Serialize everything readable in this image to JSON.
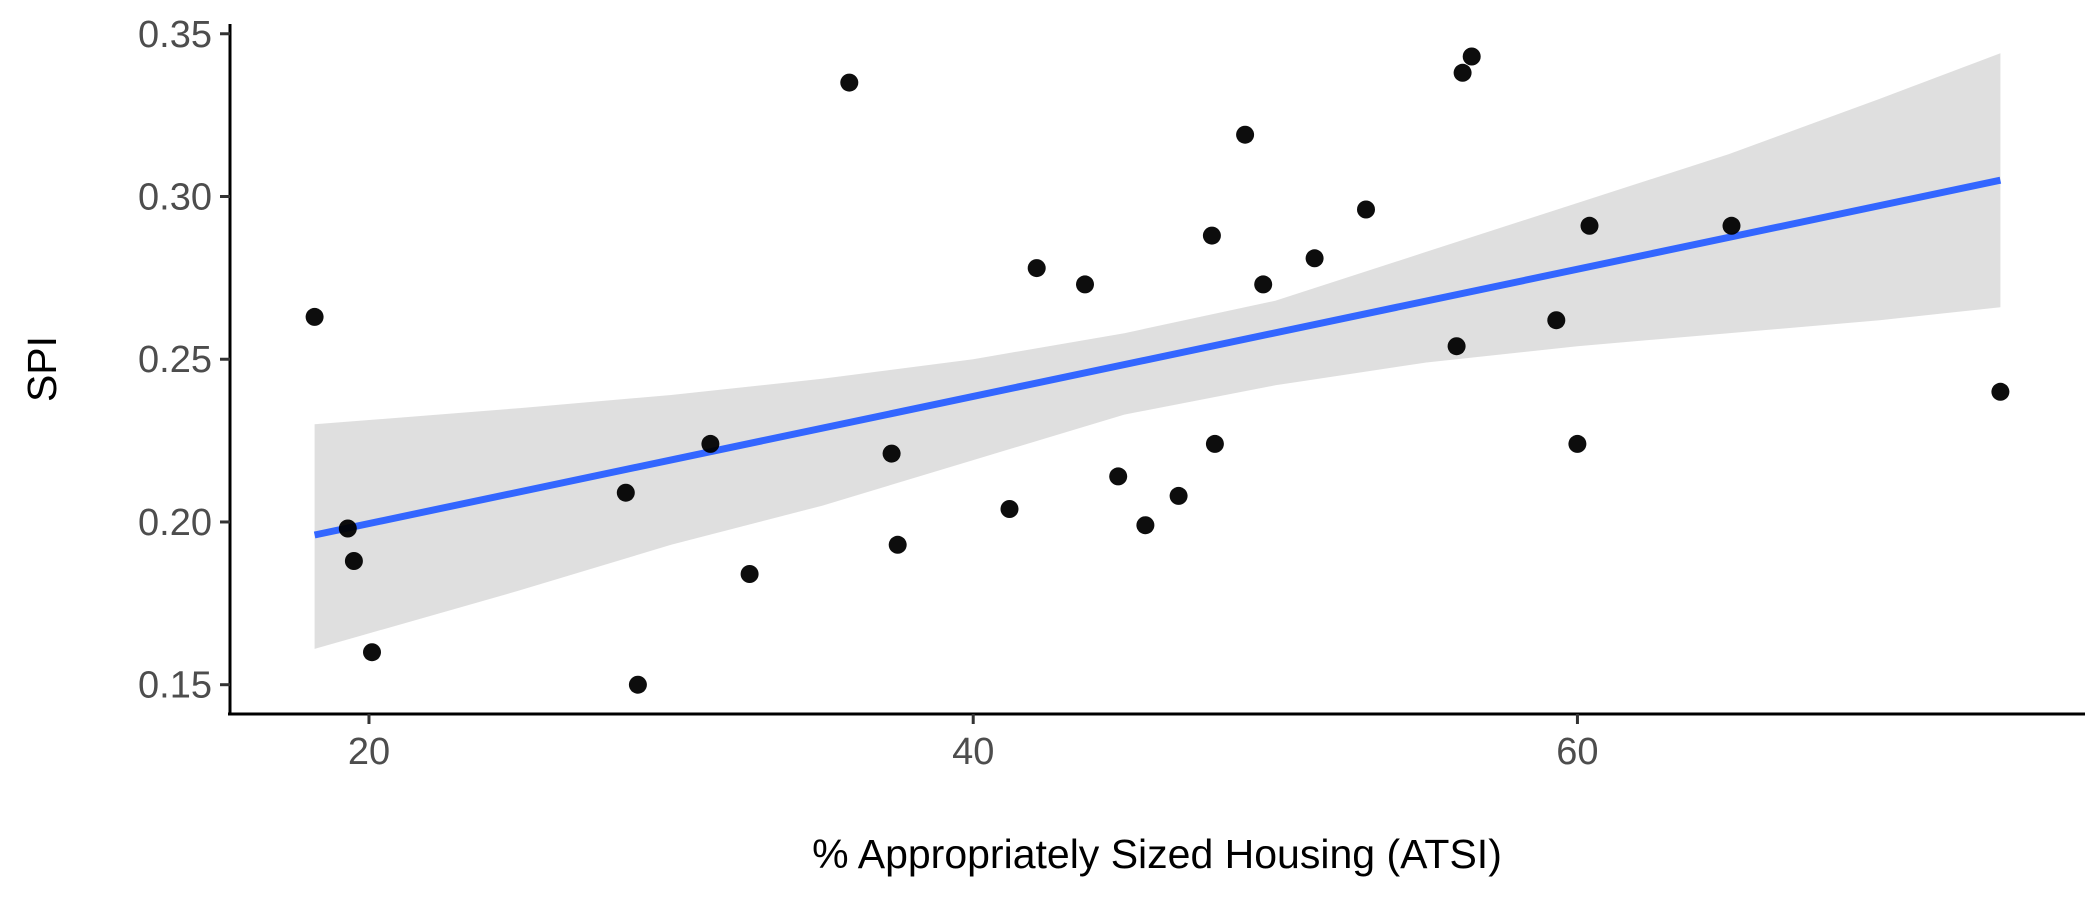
{
  "chart_data": {
    "type": "scatter",
    "title": "",
    "xlabel": "% Appropriately Sized Housing (ATSI)",
    "ylabel": "SPI",
    "xlim": [
      15.4,
      76.8
    ],
    "ylim": [
      0.141,
      0.353
    ],
    "xticks": [
      20,
      40,
      60
    ],
    "xtick_labels": [
      "20",
      "40",
      "60"
    ],
    "yticks": [
      0.15,
      0.2,
      0.25,
      0.3,
      0.35
    ],
    "ytick_labels": [
      "0.15",
      "0.20",
      "0.25",
      "0.30",
      "0.35"
    ],
    "grid": false,
    "legend": "none",
    "points": [
      {
        "x": 18.2,
        "y": 0.263
      },
      {
        "x": 19.3,
        "y": 0.198
      },
      {
        "x": 19.5,
        "y": 0.188
      },
      {
        "x": 20.1,
        "y": 0.16
      },
      {
        "x": 28.5,
        "y": 0.209
      },
      {
        "x": 28.9,
        "y": 0.15
      },
      {
        "x": 31.3,
        "y": 0.224
      },
      {
        "x": 32.6,
        "y": 0.184
      },
      {
        "x": 35.9,
        "y": 0.335
      },
      {
        "x": 37.3,
        "y": 0.221
      },
      {
        "x": 37.5,
        "y": 0.193
      },
      {
        "x": 41.2,
        "y": 0.204
      },
      {
        "x": 42.1,
        "y": 0.278
      },
      {
        "x": 43.7,
        "y": 0.273
      },
      {
        "x": 44.8,
        "y": 0.214
      },
      {
        "x": 45.7,
        "y": 0.199
      },
      {
        "x": 46.8,
        "y": 0.208
      },
      {
        "x": 47.9,
        "y": 0.288
      },
      {
        "x": 48.0,
        "y": 0.224
      },
      {
        "x": 49.0,
        "y": 0.319
      },
      {
        "x": 49.6,
        "y": 0.273
      },
      {
        "x": 51.3,
        "y": 0.281
      },
      {
        "x": 53.0,
        "y": 0.296
      },
      {
        "x": 56.0,
        "y": 0.254
      },
      {
        "x": 56.2,
        "y": 0.338
      },
      {
        "x": 56.5,
        "y": 0.343
      },
      {
        "x": 59.3,
        "y": 0.262
      },
      {
        "x": 60.0,
        "y": 0.224
      },
      {
        "x": 60.4,
        "y": 0.291
      },
      {
        "x": 65.1,
        "y": 0.291
      },
      {
        "x": 74.0,
        "y": 0.24
      }
    ],
    "trend_line": {
      "color": "#3366FF",
      "x": [
        18.2,
        74.0
      ],
      "y": [
        0.196,
        0.305
      ]
    },
    "confidence_band": {
      "color": "#d9d9d9",
      "x": [
        18.2,
        25,
        30,
        35,
        40,
        45,
        50,
        55,
        60,
        65,
        70,
        74.0
      ],
      "upper": [
        0.23,
        0.235,
        0.239,
        0.244,
        0.25,
        0.258,
        0.268,
        0.283,
        0.298,
        0.313,
        0.33,
        0.344
      ],
      "lower": [
        0.161,
        0.179,
        0.193,
        0.205,
        0.219,
        0.233,
        0.242,
        0.249,
        0.254,
        0.258,
        0.262,
        0.266
      ]
    },
    "point_color": "#000000"
  }
}
